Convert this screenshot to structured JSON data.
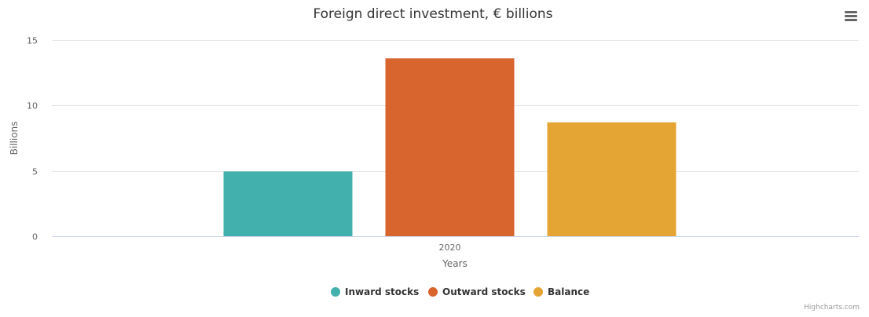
{
  "chart_data": {
    "type": "bar",
    "title": "Foreign direct investment, € billions",
    "xlabel": "Years",
    "ylabel": "Billions",
    "categories": [
      "2020"
    ],
    "ylim": [
      0,
      15
    ],
    "yticks": [
      0,
      5,
      10,
      15
    ],
    "grid": true,
    "legend_position": "bottom-center",
    "series": [
      {
        "name": "Inward stocks",
        "values": [
          4.95
        ],
        "color": "#42b0ac"
      },
      {
        "name": "Outward stocks",
        "values": [
          13.6
        ],
        "color": "#d8642e"
      },
      {
        "name": "Balance",
        "values": [
          8.7
        ],
        "color": "#e5a534"
      }
    ]
  },
  "credits": "Highcharts.com",
  "menu_icon": "hamburger-menu-icon"
}
